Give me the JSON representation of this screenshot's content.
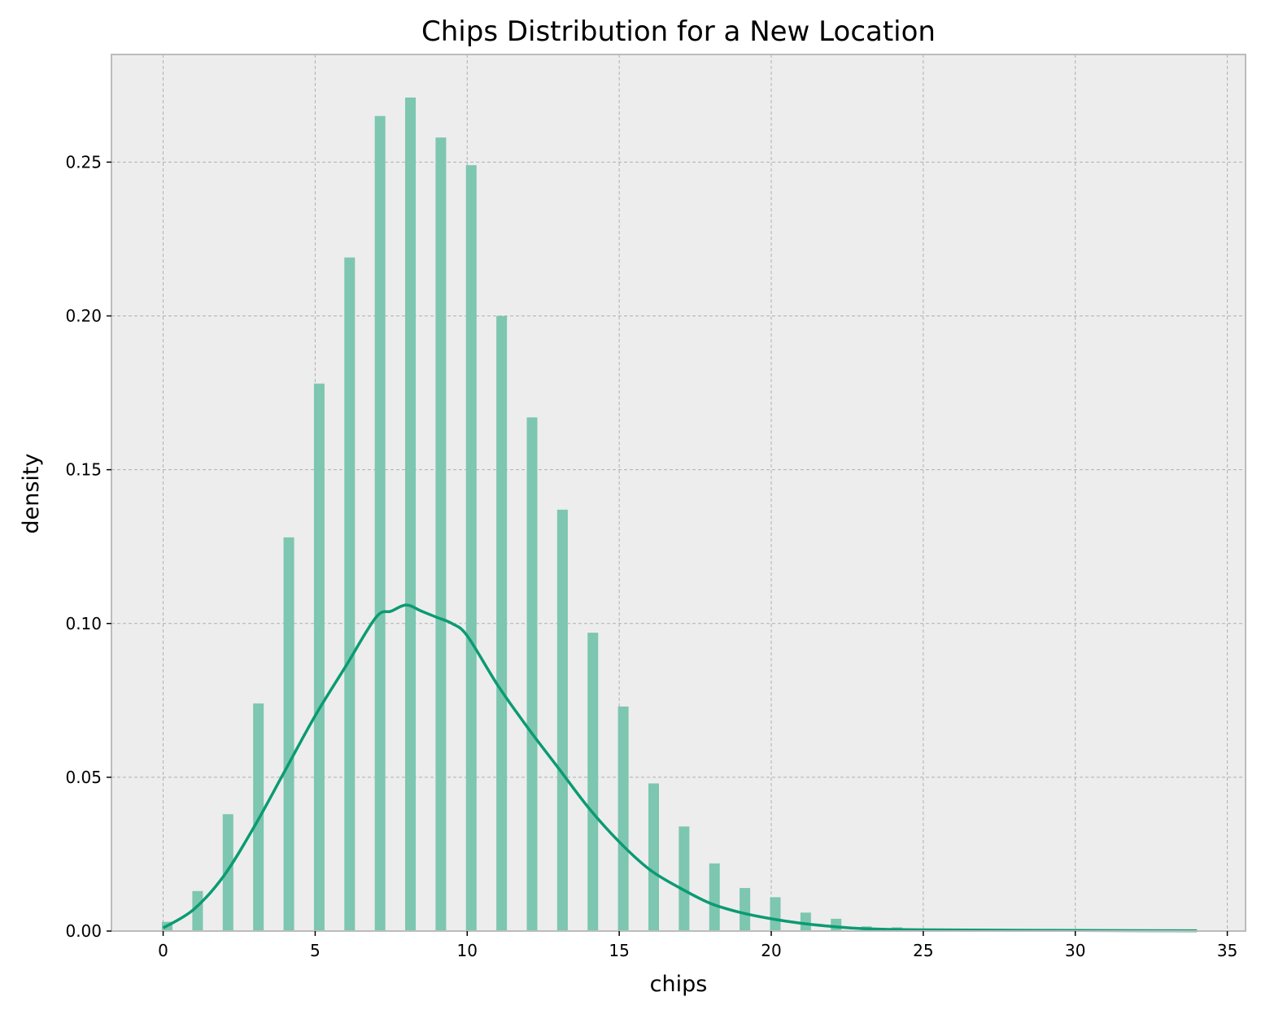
{
  "chart_data": {
    "type": "bar",
    "title": "Chips Distribution for a New Location",
    "xlabel": "chips",
    "ylabel": "density",
    "xlim": [
      -1.7,
      35.6
    ],
    "ylim": [
      0,
      0.285
    ],
    "xticks": [
      0,
      5,
      10,
      15,
      20,
      25,
      30,
      35
    ],
    "yticks": [
      0.0,
      0.05,
      0.1,
      0.15,
      0.2,
      0.25
    ],
    "ytick_labels": [
      "0.00",
      "0.05",
      "0.10",
      "0.15",
      "0.20",
      "0.25"
    ],
    "grid": true,
    "legend": "none",
    "colors": {
      "bars": "#7dc6b0",
      "kde": "#0b9b72",
      "plot_bg": "#ededed",
      "grid": "#b0b0b0"
    },
    "series": [
      {
        "type": "histogram",
        "x": [
          0,
          1,
          2,
          3,
          4,
          5,
          6,
          7,
          8,
          9,
          10,
          11,
          12,
          13,
          14,
          15,
          16,
          17,
          18,
          19,
          20,
          21,
          22,
          23,
          24
        ],
        "values": [
          0.003,
          0.013,
          0.038,
          0.074,
          0.128,
          0.178,
          0.219,
          0.265,
          0.271,
          0.258,
          0.249,
          0.2,
          0.167,
          0.137,
          0.097,
          0.073,
          0.048,
          0.034,
          0.022,
          0.014,
          0.011,
          0.006,
          0.004,
          0.0015,
          0.0012
        ]
      },
      {
        "type": "kde",
        "x": [
          0,
          1,
          2,
          3,
          4,
          5,
          6,
          7,
          7.5,
          8,
          8.5,
          9,
          9.5,
          10,
          11,
          12,
          13,
          14,
          15,
          16,
          17,
          18,
          19,
          20,
          21,
          22,
          23,
          25,
          30,
          34
        ],
        "values": [
          0.001,
          0.007,
          0.018,
          0.034,
          0.052,
          0.07,
          0.086,
          0.102,
          0.104,
          0.106,
          0.104,
          0.102,
          0.1,
          0.096,
          0.08,
          0.066,
          0.053,
          0.04,
          0.029,
          0.02,
          0.014,
          0.009,
          0.006,
          0.004,
          0.0025,
          0.0015,
          0.0008,
          0.0004,
          0.0002,
          0.0001
        ]
      }
    ]
  }
}
